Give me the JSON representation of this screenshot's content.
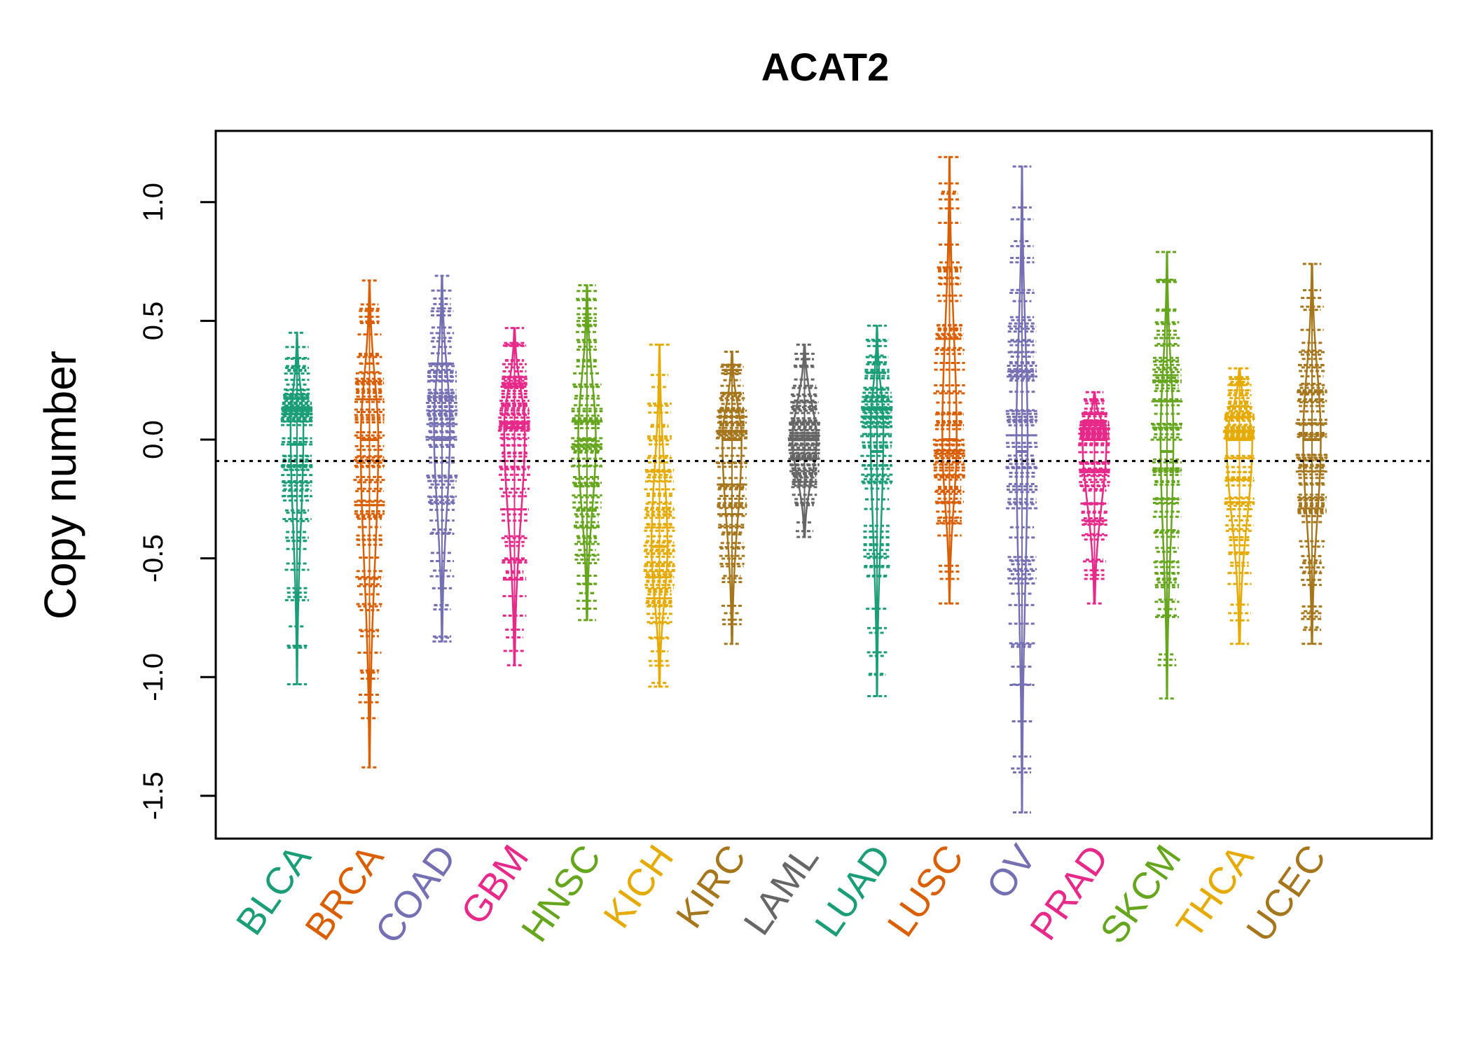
{
  "chart_data": {
    "type": "beanplot",
    "title": "ACAT2",
    "ylabel": "Copy number",
    "xlabel": "",
    "ylim": [
      -1.68,
      1.3
    ],
    "yticks": [
      -1.5,
      -1.0,
      -0.5,
      0.0,
      0.5,
      1.0
    ],
    "ytick_labels": [
      "-1.5",
      "-1.0",
      "-0.5",
      "0.0",
      "0.5",
      "1.0"
    ],
    "reference_line": -0.09,
    "grid": false,
    "legend": "none",
    "categories": [
      "BLCA",
      "BRCA",
      "COAD",
      "GBM",
      "HNSC",
      "KICH",
      "KIRC",
      "LAML",
      "LUAD",
      "LUSC",
      "OV",
      "PRAD",
      "SKCM",
      "THCA",
      "UCEC"
    ],
    "series": [
      {
        "color": "#1B9E77",
        "median": -0.02,
        "min": -1.03,
        "max": 0.45,
        "width": 0.16,
        "mid": 0.05
      },
      {
        "color": "#D95F02",
        "median": 0.0,
        "min": -1.38,
        "max": 0.67,
        "width": 0.22,
        "mid": 0.0
      },
      {
        "color": "#7570B3",
        "median": 0.0,
        "min": -0.85,
        "max": 0.69,
        "width": 0.2,
        "mid": 0.05
      },
      {
        "color": "#E7298A",
        "median": 0.05,
        "min": -0.95,
        "max": 0.47,
        "width": 0.26,
        "mid": 0.05
      },
      {
        "color": "#66A61E",
        "median": 0.0,
        "min": -0.76,
        "max": 0.65,
        "width": 0.22,
        "mid": 0.0
      },
      {
        "color": "#E6AB02",
        "median": -0.45,
        "min": -1.04,
        "max": 0.4,
        "width": 0.2,
        "mid": -0.45
      },
      {
        "color": "#A6761D",
        "median": 0.0,
        "min": -0.86,
        "max": 0.37,
        "width": 0.24,
        "mid": 0.0
      },
      {
        "color": "#666666",
        "median": 0.0,
        "min": -0.41,
        "max": 0.4,
        "width": 0.3,
        "mid": 0.0
      },
      {
        "color": "#1B9E77",
        "median": -0.05,
        "min": -1.08,
        "max": 0.48,
        "width": 0.16,
        "mid": 0.05
      },
      {
        "color": "#D95F02",
        "median": 0.0,
        "min": -0.69,
        "max": 1.19,
        "width": 0.18,
        "mid": 0.0
      },
      {
        "color": "#7570B3",
        "median": -0.05,
        "min": -1.57,
        "max": 1.15,
        "width": 0.14,
        "mid": 0.0
      },
      {
        "color": "#E7298A",
        "median": 0.0,
        "min": -0.69,
        "max": 0.2,
        "width": 0.3,
        "mid": 0.0
      },
      {
        "color": "#66A61E",
        "median": -0.05,
        "min": -1.09,
        "max": 0.79,
        "width": 0.16,
        "mid": 0.0
      },
      {
        "color": "#E6AB02",
        "median": 0.0,
        "min": -0.86,
        "max": 0.3,
        "width": 0.32,
        "mid": 0.0
      },
      {
        "color": "#A6761D",
        "median": 0.0,
        "min": -0.86,
        "max": 0.74,
        "width": 0.22,
        "mid": 0.0
      }
    ]
  }
}
